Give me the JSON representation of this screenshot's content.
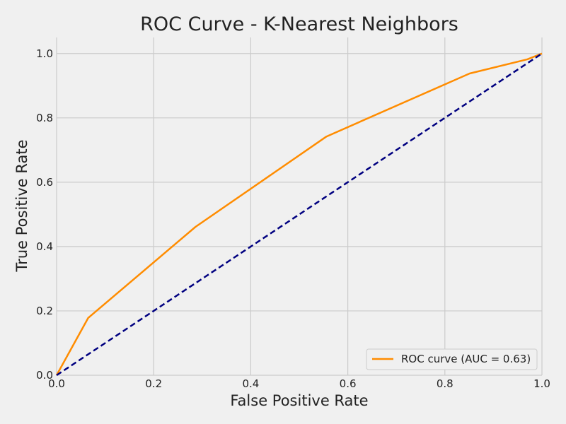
{
  "chart_data": {
    "type": "line",
    "title": "ROC Curve - K-Nearest Neighbors",
    "xlabel": "False Positive Rate",
    "ylabel": "True Positive Rate",
    "xlim": [
      0.0,
      1.0
    ],
    "ylim": [
      0.0,
      1.05
    ],
    "xticks": [
      0.0,
      0.2,
      0.4,
      0.6,
      0.8,
      1.0
    ],
    "yticks": [
      0.0,
      0.2,
      0.4,
      0.6,
      0.8,
      1.0
    ],
    "xtick_labels": [
      "0.0",
      "0.2",
      "0.4",
      "0.6",
      "0.8",
      "1.0"
    ],
    "ytick_labels": [
      "0.0",
      "0.2",
      "0.4",
      "0.6",
      "0.8",
      "1.0"
    ],
    "grid": true,
    "legend_position": "bottom-right",
    "series": [
      {
        "name": "ROC curve (AUC = 0.63)",
        "color": "#ff8c00",
        "line_style": "solid",
        "x": [
          0.0,
          0.065,
          0.286,
          0.556,
          0.851,
          0.97,
          1.0
        ],
        "y": [
          0.0,
          0.178,
          0.461,
          0.742,
          0.938,
          0.982,
          1.0
        ]
      },
      {
        "name": "",
        "color": "#000080",
        "line_style": "dashed",
        "x": [
          0.0,
          1.0
        ],
        "y": [
          0.0,
          1.0
        ]
      }
    ]
  }
}
